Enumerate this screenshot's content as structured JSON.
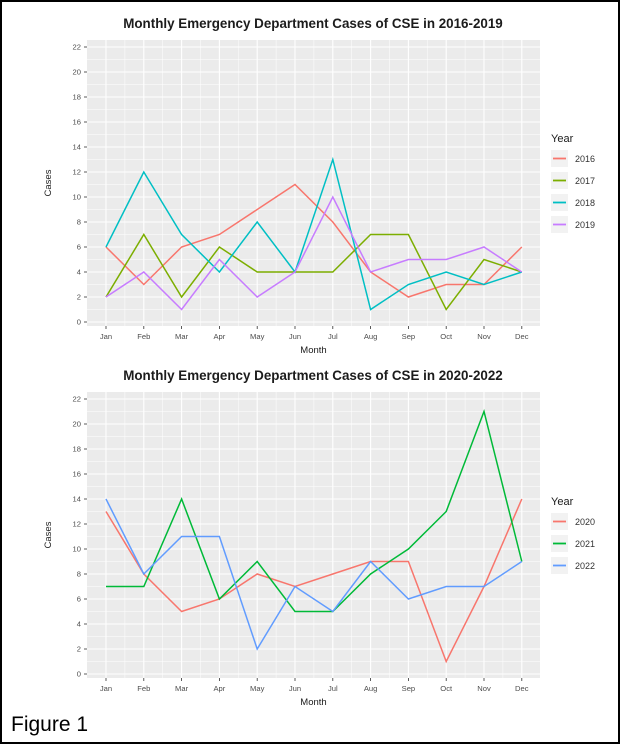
{
  "figure_caption": "Figure 1",
  "chart_data": [
    {
      "type": "line",
      "title": "Monthly Emergency Department Cases of CSE in 2016-2019",
      "xlabel": "Month",
      "ylabel": "Cases",
      "ylim": [
        0,
        22
      ],
      "yticks": [
        0,
        2,
        4,
        6,
        8,
        10,
        12,
        14,
        16,
        18,
        20,
        22
      ],
      "categories": [
        "Jan",
        "Feb",
        "Mar",
        "Apr",
        "May",
        "Jun",
        "Jul",
        "Aug",
        "Sep",
        "Oct",
        "Nov",
        "Dec"
      ],
      "grid": true,
      "panel_bg": "#EBEBEB",
      "legend_title": "Year",
      "legend_position": "right",
      "series": [
        {
          "name": "2016",
          "color": "#F8766D",
          "values": [
            6,
            3,
            6,
            7,
            9,
            11,
            8,
            4,
            2,
            3,
            3,
            6
          ]
        },
        {
          "name": "2017",
          "color": "#7CAE00",
          "values": [
            2,
            7,
            2,
            6,
            4,
            4,
            4,
            7,
            7,
            1,
            5,
            4
          ]
        },
        {
          "name": "2018",
          "color": "#00BFC4",
          "values": [
            6,
            12,
            7,
            4,
            8,
            4,
            13,
            1,
            3,
            4,
            3,
            4
          ]
        },
        {
          "name": "2019",
          "color": "#C77CFF",
          "values": [
            2,
            4,
            1,
            5,
            2,
            4,
            10,
            4,
            5,
            5,
            6,
            4
          ]
        }
      ]
    },
    {
      "type": "line",
      "title": "Monthly Emergency Department Cases of CSE in 2020-2022",
      "xlabel": "Month",
      "ylabel": "Cases",
      "ylim": [
        0,
        22
      ],
      "yticks": [
        0,
        2,
        4,
        6,
        8,
        10,
        12,
        14,
        16,
        18,
        20,
        22
      ],
      "categories": [
        "Jan",
        "Feb",
        "Mar",
        "Apr",
        "May",
        "Jun",
        "Jul",
        "Aug",
        "Sep",
        "Oct",
        "Nov",
        "Dec"
      ],
      "grid": true,
      "panel_bg": "#EBEBEB",
      "legend_title": "Year",
      "legend_position": "right",
      "series": [
        {
          "name": "2020",
          "color": "#F8766D",
          "values": [
            13,
            8,
            5,
            6,
            8,
            7,
            8,
            9,
            9,
            1,
            7,
            14
          ]
        },
        {
          "name": "2021",
          "color": "#00BA38",
          "values": [
            7,
            7,
            14,
            6,
            9,
            5,
            5,
            8,
            10,
            13,
            21,
            9
          ]
        },
        {
          "name": "2022",
          "color": "#619CFF",
          "values": [
            14,
            8,
            11,
            11,
            2,
            7,
            5,
            9,
            6,
            7,
            7,
            9
          ]
        }
      ]
    }
  ]
}
